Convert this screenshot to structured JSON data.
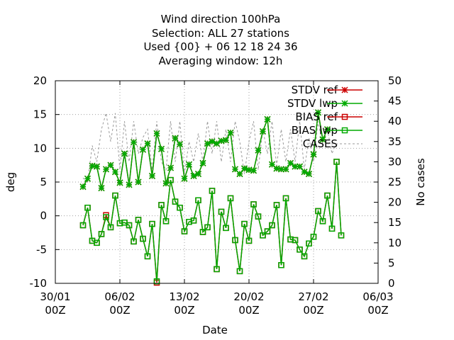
{
  "chart_data": {
    "type": "line",
    "title_lines": [
      "Wind direction 100hPa",
      "Selection: ALL     27 stations",
      "Used {00} + 06 12 18 24 36",
      "Averaging window: 12h"
    ],
    "xlabel": "Date",
    "ylabel": "deg",
    "y2label": "No cases",
    "ylim": [
      -10,
      20
    ],
    "y2lim": [
      0,
      50
    ],
    "xlim": [
      0,
      32
    ],
    "yticks": [
      -10,
      -5,
      0,
      5,
      10,
      15,
      20
    ],
    "y2ticks": [
      0,
      5,
      10,
      15,
      20,
      25,
      30,
      35,
      40,
      45,
      50
    ],
    "xticks": [
      {
        "x": 0,
        "label": [
          "30/01",
          "00Z"
        ]
      },
      {
        "x": 7,
        "label": [
          "06/02",
          "00Z"
        ]
      },
      {
        "x": 14,
        "label": [
          "13/02",
          "00Z"
        ]
      },
      {
        "x": 21,
        "label": [
          "20/02",
          "00Z"
        ]
      },
      {
        "x": 28,
        "label": [
          "27/02",
          "00Z"
        ]
      },
      {
        "x": 35,
        "label": [
          "06/03",
          "00Z"
        ]
      }
    ],
    "grid": true,
    "legend_position": "top-right",
    "x_step_days": 0.5,
    "x_start_offset_days": 3,
    "series": [
      {
        "name": "STDV ref",
        "axis": "y",
        "color": "#cc0000",
        "marker": "star",
        "values": [
          4.3,
          5.5,
          7.4,
          7.3,
          4.1,
          6.9,
          7.5,
          6.5,
          4.9,
          9.2,
          4.6,
          10.9,
          5.0,
          9.8,
          10.7,
          5.9,
          12.2,
          9.9,
          4.8,
          7.1,
          11.5,
          10.6,
          5.5,
          7.6,
          5.9,
          6.2,
          7.8,
          10.7,
          11.0,
          10.7,
          11.1,
          11.2,
          12.3,
          6.9,
          6.2,
          7.0,
          6.8,
          6.7,
          9.7,
          12.5,
          14.3,
          7.6,
          7.0,
          6.9,
          6.9,
          7.8,
          7.3,
          7.3,
          6.5,
          6.2,
          9.1,
          15.3,
          11.3,
          12.8
        ]
      },
      {
        "name": "STDV lwp",
        "axis": "y",
        "color": "#00aa00",
        "marker": "star",
        "values": [
          4.3,
          5.5,
          7.4,
          7.3,
          4.1,
          6.9,
          7.5,
          6.5,
          4.9,
          9.2,
          4.6,
          10.9,
          5.0,
          9.8,
          10.7,
          5.9,
          12.2,
          9.9,
          4.8,
          7.1,
          11.5,
          10.6,
          5.5,
          7.6,
          5.9,
          6.2,
          7.8,
          10.7,
          11.0,
          10.7,
          11.1,
          11.2,
          12.3,
          6.9,
          6.2,
          7.0,
          6.8,
          6.7,
          9.7,
          12.5,
          14.3,
          7.6,
          7.0,
          6.9,
          6.9,
          7.8,
          7.3,
          7.3,
          6.5,
          6.2,
          9.1,
          15.3,
          11.3,
          12.8
        ]
      },
      {
        "name": "BIAS ref",
        "axis": "y",
        "color": "#cc0000",
        "marker": "square",
        "values": [
          -1.4,
          1.2,
          -3.7,
          -4.0,
          -2.7,
          0.1,
          -1.7,
          3.0,
          -1.1,
          -1.0,
          -1.4,
          -3.8,
          -0.6,
          -3.4,
          -6.0,
          -1.2,
          -9.9,
          1.6,
          -0.8,
          5.3,
          2.1,
          1.2,
          -2.3,
          -0.9,
          -0.7,
          2.3,
          -2.4,
          -1.7,
          3.7,
          -7.9,
          0.6,
          -1.8,
          2.6,
          -3.6,
          -8.2,
          -1.2,
          -3.7,
          1.7,
          -0.1,
          -2.9,
          -2.3,
          -1.4,
          1.6,
          -7.3,
          2.6,
          -3.5,
          -3.6,
          -5.0,
          -6.0,
          -4.1,
          -3.1,
          0.7,
          -0.8,
          3.0,
          -1.9,
          8.0,
          -2.9
        ]
      },
      {
        "name": "BIAS lwp",
        "axis": "y",
        "color": "#00aa00",
        "marker": "square",
        "values": [
          -1.4,
          1.2,
          -3.7,
          -4.0,
          -2.7,
          -0.2,
          -1.7,
          3.0,
          -1.1,
          -1.0,
          -1.4,
          -3.8,
          -0.6,
          -3.4,
          -6.0,
          -1.2,
          -9.7,
          1.6,
          -0.8,
          5.3,
          2.1,
          1.2,
          -2.3,
          -0.9,
          -0.7,
          2.3,
          -2.4,
          -1.7,
          3.7,
          -7.9,
          0.6,
          -1.8,
          2.6,
          -3.6,
          -8.2,
          -1.2,
          -3.7,
          1.7,
          -0.1,
          -2.9,
          -2.3,
          -1.4,
          1.6,
          -7.3,
          2.6,
          -3.5,
          -3.6,
          -5.0,
          -6.0,
          -4.1,
          -3.1,
          0.7,
          -0.8,
          3.0,
          -1.9,
          8.0,
          -2.9
        ]
      },
      {
        "name": "CASES",
        "axis": "y2",
        "color": "#999999",
        "marker": "none",
        "dashed": true,
        "values": [
          26,
          25,
          34,
          30,
          38,
          42,
          35,
          42,
          28,
          40,
          30,
          40,
          32,
          36,
          38,
          28,
          40,
          30,
          28,
          40,
          30,
          40,
          27,
          35,
          30,
          37,
          30,
          40,
          32,
          40,
          30,
          38,
          30,
          40,
          35,
          27,
          35,
          40,
          28,
          38,
          32,
          40,
          29,
          38,
          30,
          38,
          30,
          40,
          28,
          36,
          30,
          40,
          34,
          38,
          32,
          35
        ]
      }
    ]
  }
}
